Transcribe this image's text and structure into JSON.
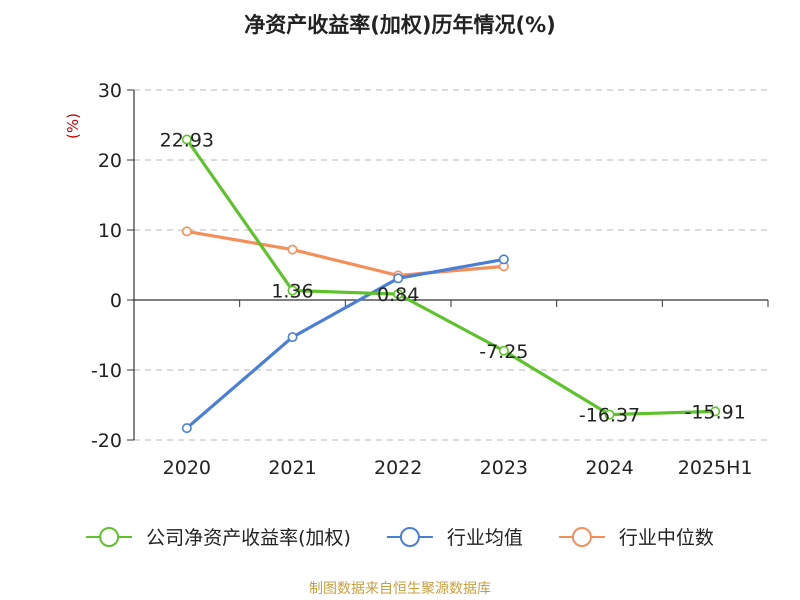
{
  "chart_data": {
    "type": "line",
    "title": "净资产收益率(加权)历年情况(%)",
    "ylabel": "(%)",
    "xlabel": "",
    "categories": [
      "2020",
      "2021",
      "2022",
      "2023",
      "2024",
      "2025H1"
    ],
    "ylim": [
      -20,
      30
    ],
    "yticks": [
      30,
      20,
      10,
      0,
      -10,
      -20
    ],
    "grid": true,
    "legend_position": "bottom",
    "series": [
      {
        "name": "公司净资产收益率(加权)",
        "color": "#5ec32a",
        "values": [
          22.93,
          1.36,
          0.84,
          -7.25,
          -16.37,
          -15.91
        ],
        "labels": [
          "22.93",
          "1.36",
          "0.84",
          "-7.25",
          "-16.37",
          "-15.91"
        ]
      },
      {
        "name": "行业均值",
        "color": "#4a7fd6",
        "values": [
          -18.3,
          -5.3,
          3.1,
          5.8,
          null,
          null
        ]
      },
      {
        "name": "行业中位数",
        "color": "#f58f5a",
        "values": [
          9.8,
          7.2,
          3.5,
          4.8,
          null,
          null
        ]
      }
    ]
  },
  "source_note": "制图数据来自恒生聚源数据库",
  "colors": {
    "axis": "#333333",
    "grid": "#c8c8c8",
    "ylabel": "#cc0000",
    "source": "#c8a040",
    "text": "#222222"
  }
}
